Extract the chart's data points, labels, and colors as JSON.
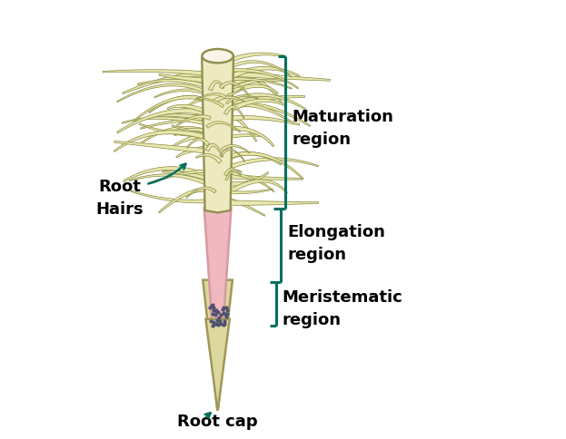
{
  "background_color": "#ffffff",
  "root_pink_color": "#f0b8c0",
  "root_pink_dark": "#d89aa0",
  "root_tan_color": "#ddd8a0",
  "root_tan_dark": "#a09858",
  "root_outline": "#604820",
  "hair_fill": "#e8e8b0",
  "hair_outline": "#888840",
  "stem_fill": "#eeeac0",
  "stem_outline": "#909050",
  "top_ellipse_fill": "#f5f2e0",
  "top_ellipse_outline": "#a0a060",
  "meristem_dot": "#505070",
  "bracket_color": "#007060",
  "label_color": "#000000",
  "arrow_color": "#007060",
  "labels": {
    "maturation": "Maturation\nregion",
    "elongation": "Elongation\nregion",
    "meristematic": "Meristematic\nregion",
    "root_hairs": "Root\nHairs",
    "root_cap": "Root cap"
  },
  "label_fontsize": 13,
  "label_fontweight": "bold",
  "fig_width": 6.23,
  "fig_height": 4.85,
  "dpi": 100
}
